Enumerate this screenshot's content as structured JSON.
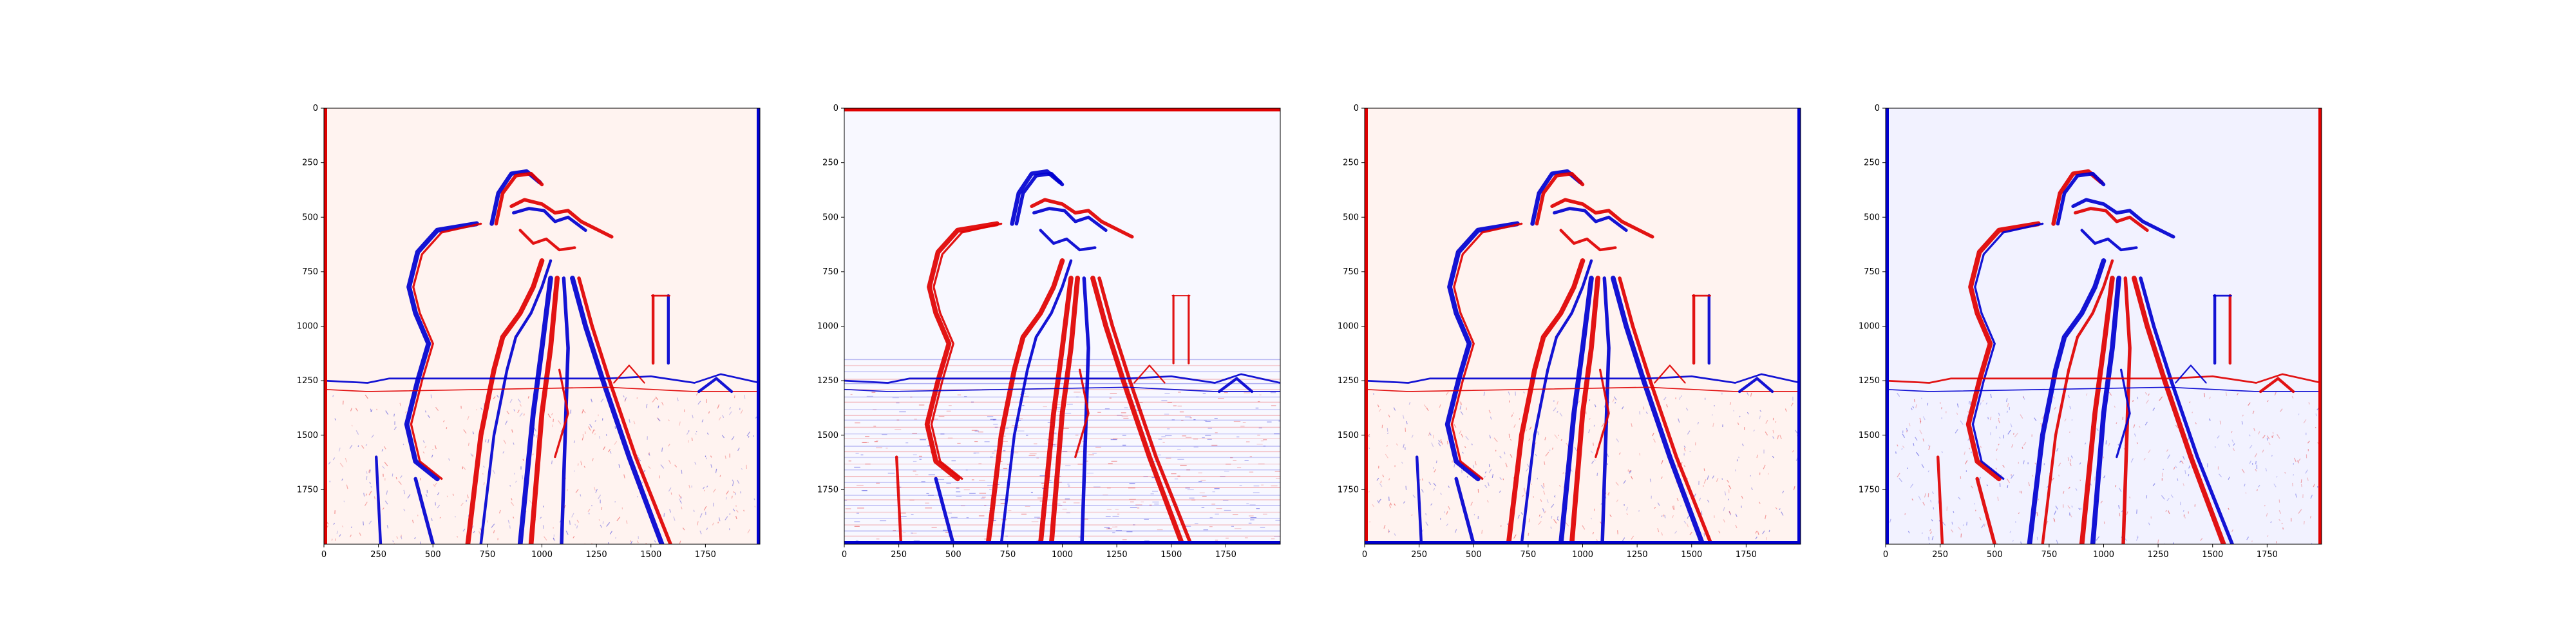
{
  "colors": {
    "background": "#ffffff",
    "positive": "#e00000",
    "negative": "#0000d0",
    "neutral": "#ffffff",
    "axis": "#000000"
  },
  "chart_data": [
    {
      "type": "heatmap",
      "description_key": "panel-1",
      "colormap": "bwr",
      "xlim": [
        0,
        2000
      ],
      "ylim": [
        2000,
        0
      ],
      "xticks": [
        0,
        250,
        500,
        750,
        1000,
        1250,
        1500,
        1750
      ],
      "yticks": [
        0,
        250,
        500,
        750,
        1000,
        1250,
        1500,
        1750
      ],
      "xlabel": "",
      "ylabel": "",
      "title": "",
      "grid": false,
      "border_edges": {
        "left": "positive",
        "right": "negative"
      },
      "edge_polarity": 1
    },
    {
      "type": "heatmap",
      "description_key": "panel-2",
      "colormap": "bwr",
      "xlim": [
        0,
        2000
      ],
      "ylim": [
        2000,
        0
      ],
      "xticks": [
        0,
        250,
        500,
        750,
        1000,
        1250,
        1500,
        1750
      ],
      "yticks": [
        0,
        250,
        500,
        750,
        1000,
        1250,
        1500,
        1750
      ],
      "xlabel": "",
      "ylabel": "",
      "title": "",
      "grid": false,
      "border_edges": {
        "top": "positive",
        "bottom": "negative"
      },
      "edge_polarity": 0
    },
    {
      "type": "heatmap",
      "description_key": "panel-3",
      "colormap": "bwr",
      "xlim": [
        0,
        2000
      ],
      "ylim": [
        2000,
        0
      ],
      "xticks": [
        0,
        250,
        500,
        750,
        1000,
        1250,
        1500,
        1750
      ],
      "yticks": [
        0,
        250,
        500,
        750,
        1000,
        1250,
        1500,
        1750
      ],
      "xlabel": "",
      "ylabel": "",
      "title": "",
      "grid": false,
      "border_edges": {
        "left": "positive",
        "right": "negative",
        "bottom": "negative"
      },
      "edge_polarity": 1
    },
    {
      "type": "heatmap",
      "description_key": "panel-4",
      "colormap": "bwr",
      "xlim": [
        0,
        2000
      ],
      "ylim": [
        2000,
        0
      ],
      "xticks": [
        0,
        250,
        500,
        750,
        1000,
        1250,
        1500,
        1750
      ],
      "yticks": [
        0,
        250,
        500,
        750,
        1000,
        1250,
        1500,
        1750
      ],
      "xlabel": "",
      "ylabel": "",
      "title": "",
      "grid": false,
      "border_edges": {
        "left": "negative",
        "right": "positive"
      },
      "edge_polarity": -1
    }
  ]
}
